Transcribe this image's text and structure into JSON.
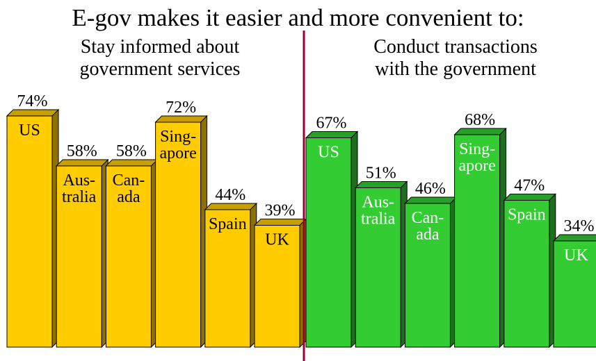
{
  "title": "E-gov makes it easier and more convenient to:",
  "colors": {
    "left_fill": "#FFCC00",
    "right_fill": "#33CC33",
    "divider": "#990033"
  },
  "chart_data": [
    {
      "type": "bar",
      "title": "Stay informed about\ngovernment services",
      "categories": [
        "US",
        "Australia",
        "Canada",
        "Singapore",
        "Spain",
        "UK"
      ],
      "category_labels": [
        [
          "US"
        ],
        [
          "Aus-",
          "tralia"
        ],
        [
          "Can-",
          "ada"
        ],
        [
          "Sing-",
          "apore"
        ],
        [
          "Spain"
        ],
        [
          "UK"
        ]
      ],
      "values": [
        74,
        58,
        58,
        72,
        44,
        39
      ],
      "value_labels": [
        "74%",
        "58%",
        "58%",
        "72%",
        "44%",
        "39%"
      ],
      "unit": "%",
      "ylim": [
        0,
        100
      ],
      "color": "#FFCC00"
    },
    {
      "type": "bar",
      "title": "Conduct transactions\nwith the government",
      "categories": [
        "US",
        "Australia",
        "Canada",
        "Singapore",
        "Spain",
        "UK"
      ],
      "category_labels": [
        [
          "US"
        ],
        [
          "Aus-",
          "tralia"
        ],
        [
          "Can-",
          "ada"
        ],
        [
          "Sing-",
          "apore"
        ],
        [
          "Spain"
        ],
        [
          "UK"
        ]
      ],
      "values": [
        67,
        51,
        46,
        68,
        47,
        34
      ],
      "value_labels": [
        "67%",
        "51%",
        "46%",
        "68%",
        "47%",
        "34%"
      ],
      "unit": "%",
      "ylim": [
        0,
        100
      ],
      "color": "#33CC33"
    }
  ]
}
